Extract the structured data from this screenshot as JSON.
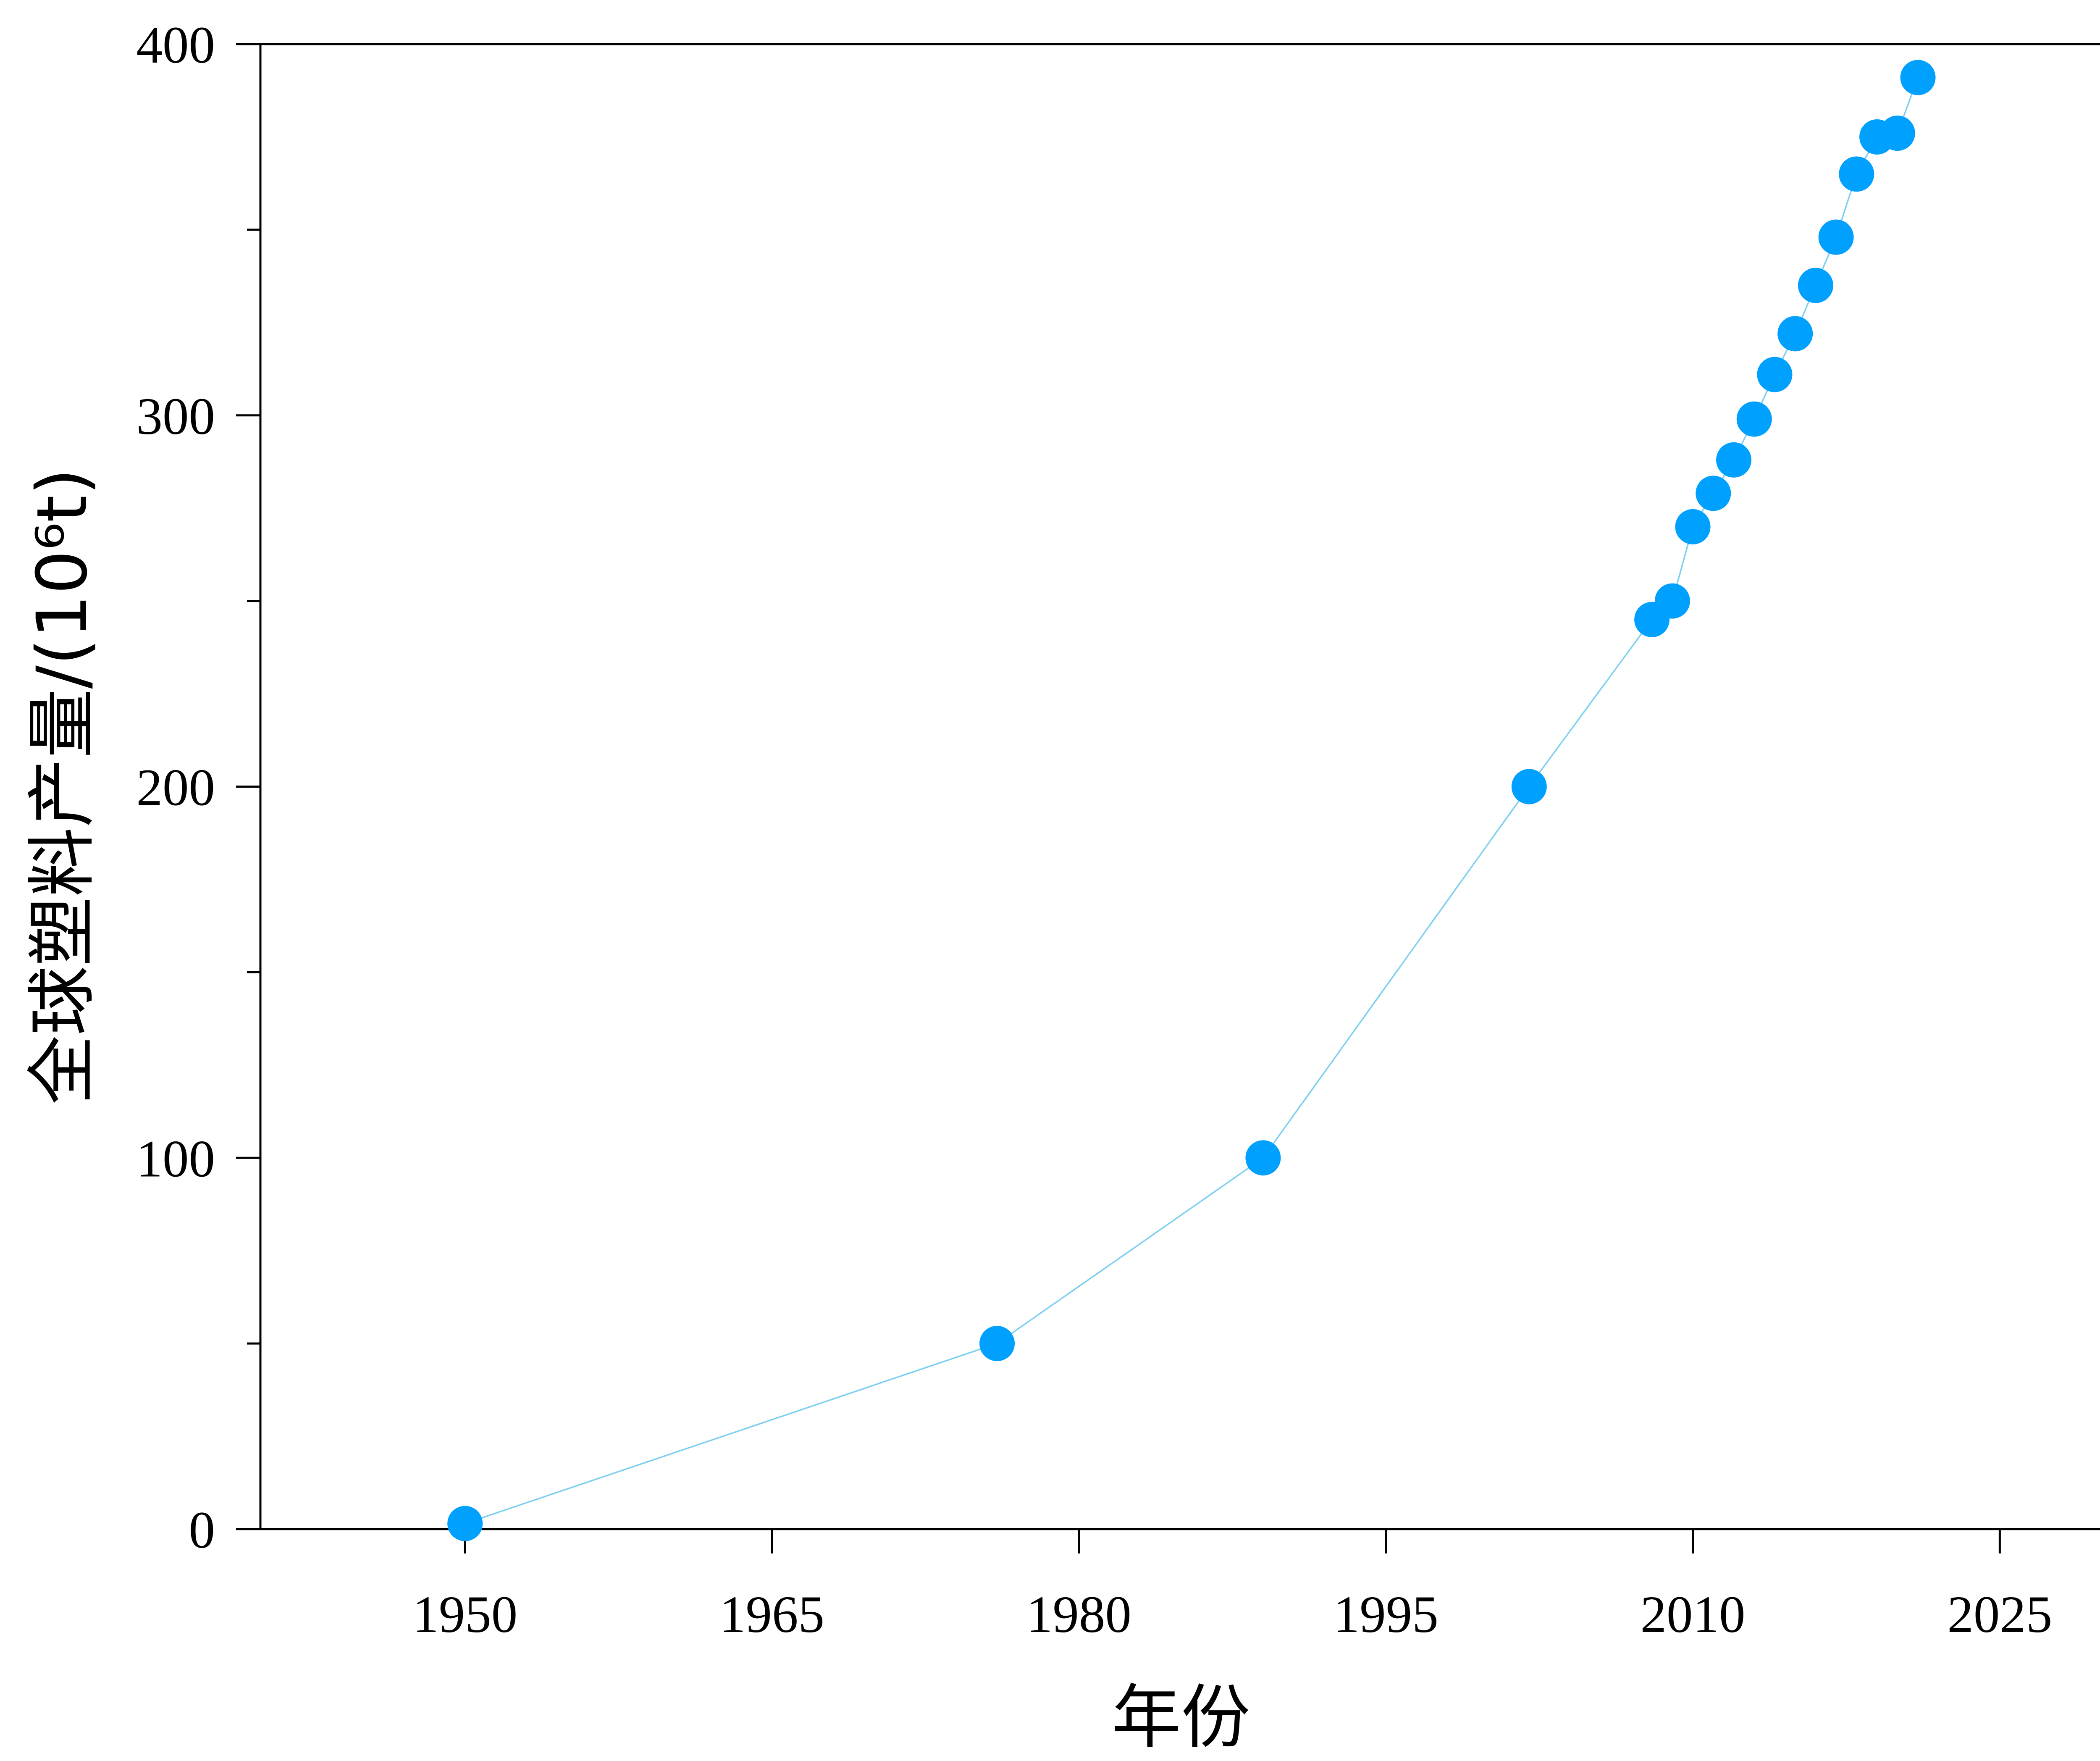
{
  "chart_data": {
    "type": "line",
    "xlabel": "年份",
    "ylabel": "全球塑料产量/(10⁶t)",
    "xlim": [
      1940,
      2030
    ],
    "ylim": [
      0,
      400
    ],
    "x_ticks": [
      1950,
      1965,
      1980,
      1995,
      2010,
      2025
    ],
    "y_ticks": [
      0,
      100,
      200,
      300,
      400
    ],
    "y_minor_ticks": [
      50,
      150,
      250,
      350
    ],
    "grid": false,
    "color": "#00a0ff",
    "line_color": "#7fd0f0",
    "series": [
      {
        "x": [
          1950,
          1976,
          1989,
          2002,
          2008,
          2009,
          2010,
          2011,
          2012,
          2013,
          2014,
          2015,
          2016,
          2017,
          2018,
          2019,
          2020,
          2021
        ],
        "y": [
          1.5,
          50,
          100,
          200,
          245,
          250,
          270,
          279,
          288,
          299,
          311,
          322,
          335,
          348,
          365,
          375,
          376,
          391
        ]
      }
    ]
  }
}
